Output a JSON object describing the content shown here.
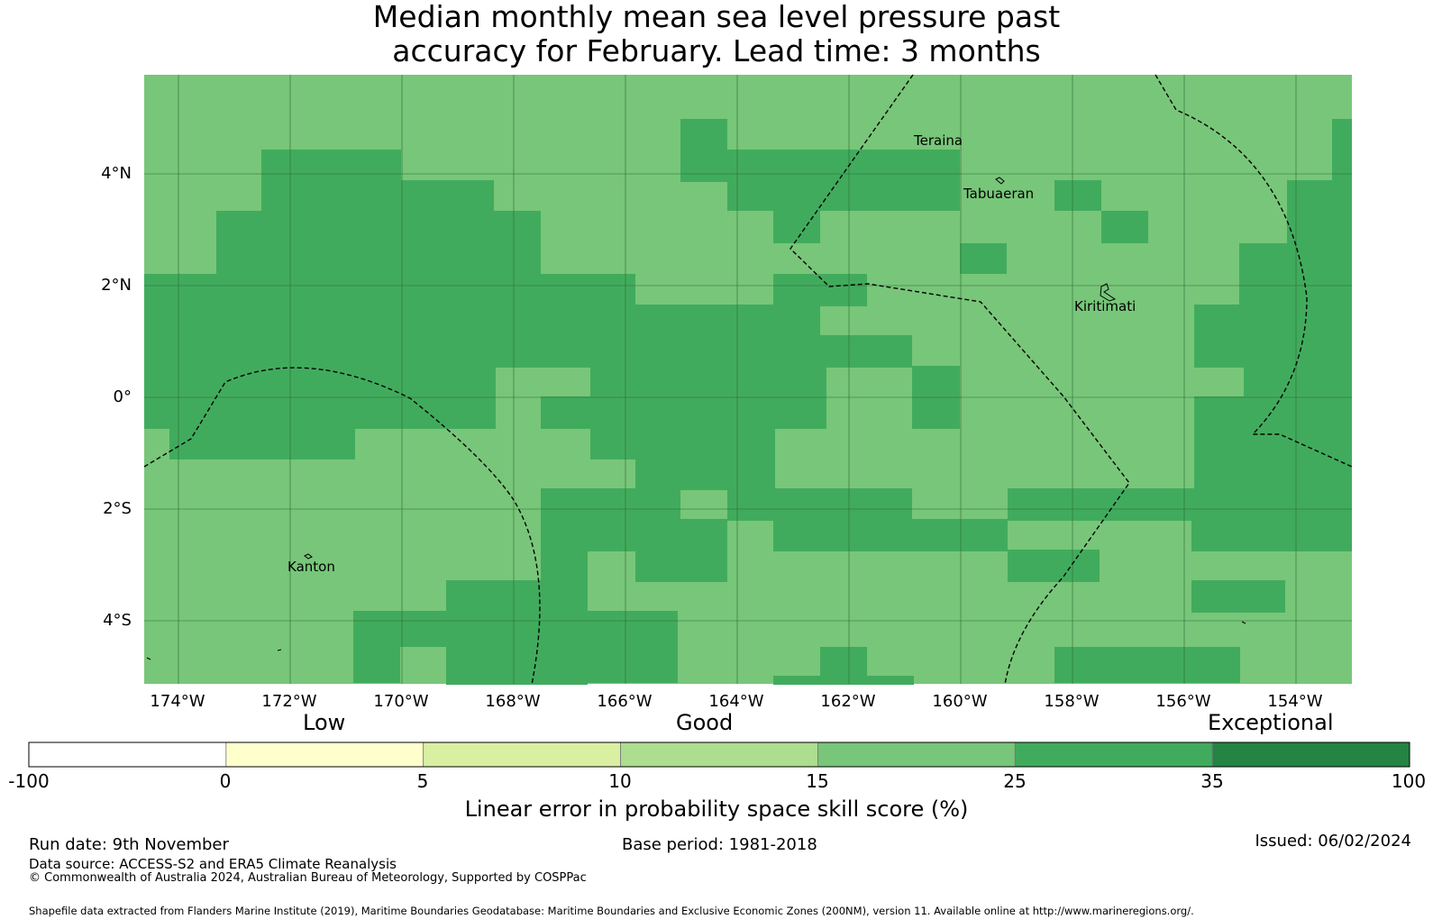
{
  "title": {
    "line1": "Median monthly mean sea level pressure past",
    "line2": "accuracy for February. Lead time: 3 months"
  },
  "map": {
    "lat_ticks": [
      "4°N",
      "2°N",
      "0°",
      "2°S",
      "4°S"
    ],
    "lon_ticks": [
      "174°W",
      "172°W",
      "170°W",
      "168°W",
      "166°W",
      "164°W",
      "162°W",
      "160°W",
      "158°W",
      "156°W",
      "154°W"
    ],
    "places": [
      "Teraina",
      "Tabuaeran",
      "Kiritimati",
      "Kanton"
    ],
    "colors": {
      "good": "#78c679",
      "very_good": "#41ab5d"
    }
  },
  "colorbar": {
    "categories": [
      "Low",
      "Good",
      "Exceptional"
    ],
    "ticks": [
      "-100",
      "0",
      "5",
      "10",
      "15",
      "25",
      "35",
      "100"
    ],
    "colors": [
      "#ffffff",
      "#ffffcc",
      "#d9f0a3",
      "#addd8e",
      "#78c679",
      "#41ab5d",
      "#238443"
    ],
    "label": "Linear error in probability space skill score (%)"
  },
  "footer": {
    "run_date": "Run date: 9th November",
    "base_period": "Base period: 1981-2018",
    "issued": "Issued: 06/02/2024",
    "data_source": "Data source: ACCESS-S2 and ERA5 Climate Reanalysis",
    "copyright": "© Commonwealth of Australia 2024, Australian Bureau of Meteorology, Supported by COSPPac",
    "shapefile": "Shapefile data extracted from Flanders Marine Institute (2019), Maritime Boundaries Geodatabase: Maritime Boundaries and Exclusive Economic Zones (200NM), version 11. Available online at http://www.marineregions.org/."
  }
}
